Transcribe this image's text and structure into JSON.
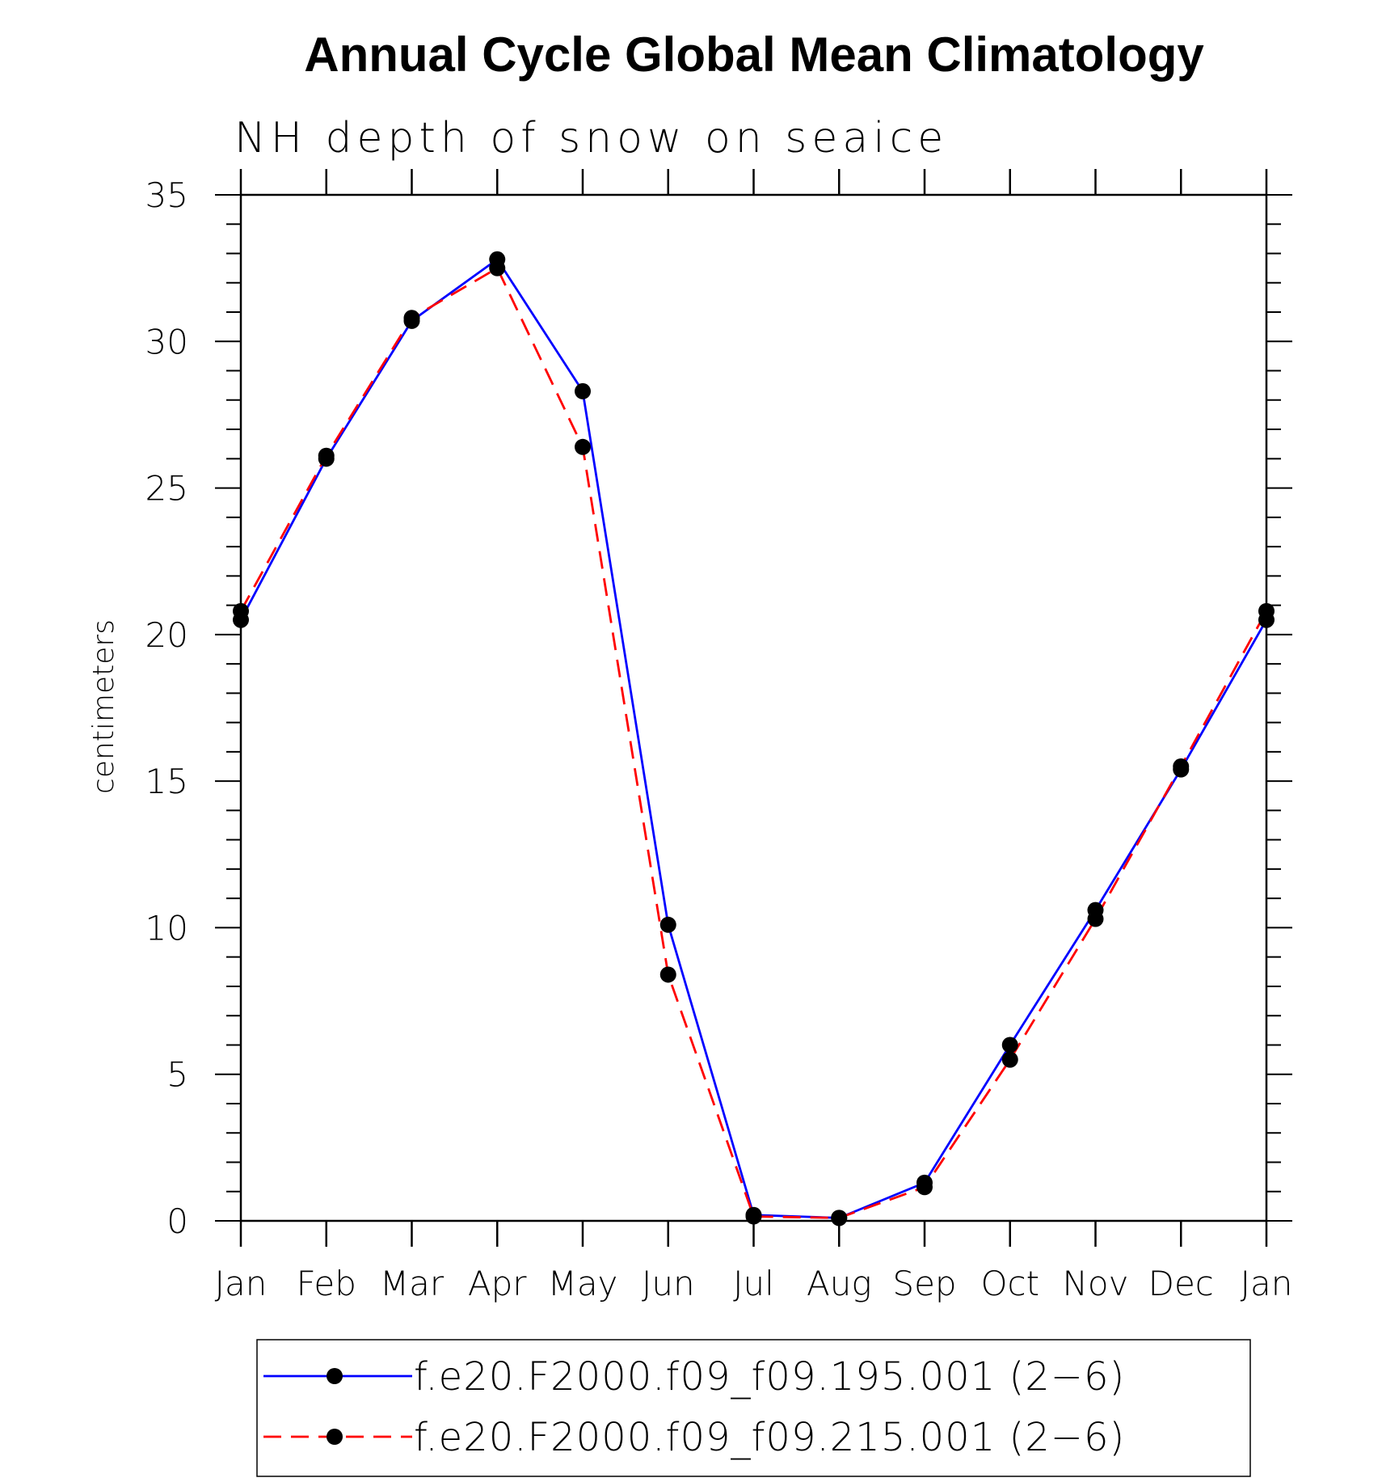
{
  "chart_data": {
    "type": "line",
    "title": "Annual Cycle Global Mean Climatology",
    "subtitle": "NH depth of snow on seaice",
    "xlabel": "",
    "ylabel": "centimeters",
    "categories": [
      "Jan",
      "Feb",
      "Mar",
      "Apr",
      "May",
      "Jun",
      "Jul",
      "Aug",
      "Sep",
      "Oct",
      "Nov",
      "Dec",
      "Jan"
    ],
    "ylim": [
      0,
      35
    ],
    "yticks": [
      0,
      5,
      10,
      15,
      20,
      25,
      30,
      35
    ],
    "grid": false,
    "legend_position": "bottom",
    "series": [
      {
        "name": "f.e20.F2000.f09_f09.195.001 (2−6)",
        "color": "#0000ff",
        "dash": "solid",
        "marker": "filled-circle",
        "values": [
          20.5,
          26.0,
          30.7,
          32.8,
          28.3,
          10.1,
          0.2,
          0.1,
          1.3,
          6.0,
          10.6,
          15.4,
          20.5
        ]
      },
      {
        "name": "f.e20.F2000.f09_f09.215.001 (2−6)",
        "color": "#ff0000",
        "dash": "dashed",
        "marker": "filled-circle",
        "values": [
          20.8,
          26.1,
          30.8,
          32.5,
          26.4,
          8.4,
          0.15,
          0.1,
          1.15,
          5.5,
          10.3,
          15.5,
          20.8
        ]
      }
    ]
  }
}
